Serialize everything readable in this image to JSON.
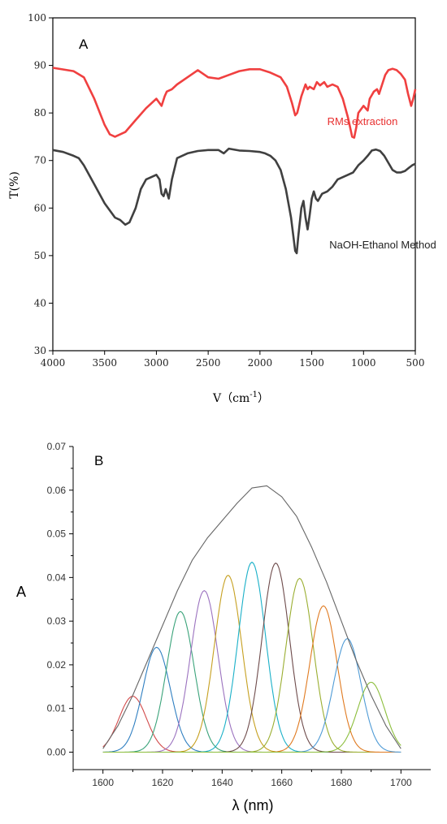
{
  "chart_data": [
    {
      "type": "line",
      "panel_label": "A",
      "xlabel": "V（cm",
      "xlabel_sup": "-1",
      "xlabel_close": "）",
      "ylabel": "T(%)",
      "xlim": [
        4000,
        500
      ],
      "ylim": [
        30,
        100
      ],
      "x_ticks": [
        4000,
        3500,
        3000,
        2500,
        2000,
        1500,
        1000,
        500
      ],
      "y_ticks": [
        30,
        40,
        50,
        60,
        70,
        80,
        90,
        100
      ],
      "colors": {
        "rms": "#f04040",
        "naoh": "#404040"
      },
      "annotations": [
        {
          "text": "RMs extraction",
          "color": "#e83030",
          "x": 1350,
          "y": 77.5
        },
        {
          "text": "NaOH-Ethanol Method",
          "color": "#222222",
          "x": 1330,
          "y": 51.5
        }
      ],
      "series": [
        {
          "name": "RMs extraction",
          "color": "#f04040",
          "points": [
            [
              4000,
              89.5
            ],
            [
              3800,
              88.8
            ],
            [
              3700,
              87.5
            ],
            [
              3600,
              83
            ],
            [
              3500,
              77.5
            ],
            [
              3450,
              75.5
            ],
            [
              3400,
              75
            ],
            [
              3300,
              76
            ],
            [
              3200,
              78.5
            ],
            [
              3100,
              81
            ],
            [
              3000,
              83
            ],
            [
              2950,
              81.5
            ],
            [
              2920,
              83.5
            ],
            [
              2900,
              84.5
            ],
            [
              2850,
              85
            ],
            [
              2800,
              86
            ],
            [
              2700,
              87.5
            ],
            [
              2600,
              89
            ],
            [
              2500,
              87.5
            ],
            [
              2400,
              87.2
            ],
            [
              2300,
              88
            ],
            [
              2200,
              88.8
            ],
            [
              2100,
              89.2
            ],
            [
              2000,
              89.2
            ],
            [
              1900,
              88.5
            ],
            [
              1800,
              87.5
            ],
            [
              1740,
              85.5
            ],
            [
              1690,
              82
            ],
            [
              1660,
              79.5
            ],
            [
              1640,
              80
            ],
            [
              1600,
              83.5
            ],
            [
              1560,
              86
            ],
            [
              1540,
              85
            ],
            [
              1520,
              85.5
            ],
            [
              1480,
              85
            ],
            [
              1450,
              86.5
            ],
            [
              1420,
              85.8
            ],
            [
              1380,
              86.5
            ],
            [
              1350,
              85.5
            ],
            [
              1300,
              86
            ],
            [
              1250,
              85.5
            ],
            [
              1200,
              83
            ],
            [
              1150,
              79
            ],
            [
              1110,
              75
            ],
            [
              1090,
              74.8
            ],
            [
              1070,
              77
            ],
            [
              1050,
              80
            ],
            [
              1000,
              81.5
            ],
            [
              960,
              80.5
            ],
            [
              940,
              83
            ],
            [
              900,
              84.5
            ],
            [
              870,
              85
            ],
            [
              850,
              84
            ],
            [
              820,
              86
            ],
            [
              790,
              88
            ],
            [
              760,
              89
            ],
            [
              720,
              89.3
            ],
            [
              680,
              89
            ],
            [
              640,
              88.2
            ],
            [
              600,
              87
            ],
            [
              570,
              84
            ],
            [
              540,
              81.5
            ],
            [
              520,
              83
            ],
            [
              500,
              85
            ]
          ]
        },
        {
          "name": "NaOH-Ethanol Method",
          "color": "#404040",
          "points": [
            [
              4000,
              72.2
            ],
            [
              3900,
              71.8
            ],
            [
              3800,
              71
            ],
            [
              3750,
              70.5
            ],
            [
              3700,
              69
            ],
            [
              3600,
              65
            ],
            [
              3500,
              61
            ],
            [
              3400,
              58
            ],
            [
              3350,
              57.5
            ],
            [
              3300,
              56.5
            ],
            [
              3260,
              57
            ],
            [
              3200,
              60
            ],
            [
              3150,
              64
            ],
            [
              3100,
              66
            ],
            [
              3050,
              66.5
            ],
            [
              3000,
              67
            ],
            [
              2970,
              66
            ],
            [
              2950,
              63
            ],
            [
              2930,
              62.5
            ],
            [
              2910,
              64
            ],
            [
              2880,
              62
            ],
            [
              2850,
              66
            ],
            [
              2800,
              70.5
            ],
            [
              2700,
              71.5
            ],
            [
              2600,
              72
            ],
            [
              2500,
              72.2
            ],
            [
              2400,
              72.2
            ],
            [
              2350,
              71.5
            ],
            [
              2300,
              72.5
            ],
            [
              2200,
              72.1
            ],
            [
              2100,
              72
            ],
            [
              2000,
              71.8
            ],
            [
              1950,
              71.5
            ],
            [
              1900,
              71
            ],
            [
              1850,
              70
            ],
            [
              1800,
              68
            ],
            [
              1750,
              64
            ],
            [
              1700,
              58
            ],
            [
              1660,
              51
            ],
            [
              1645,
              50.5
            ],
            [
              1630,
              54
            ],
            [
              1600,
              60
            ],
            [
              1580,
              61.5
            ],
            [
              1560,
              58
            ],
            [
              1540,
              55.5
            ],
            [
              1520,
              58.5
            ],
            [
              1500,
              62
            ],
            [
              1480,
              63.5
            ],
            [
              1460,
              62
            ],
            [
              1440,
              61.5
            ],
            [
              1400,
              63
            ],
            [
              1350,
              63.5
            ],
            [
              1300,
              64.5
            ],
            [
              1250,
              66
            ],
            [
              1200,
              66.5
            ],
            [
              1150,
              67
            ],
            [
              1100,
              67.5
            ],
            [
              1050,
              69
            ],
            [
              1000,
              70
            ],
            [
              960,
              71
            ],
            [
              920,
              72.1
            ],
            [
              880,
              72.3
            ],
            [
              840,
              72
            ],
            [
              800,
              71
            ],
            [
              760,
              69.5
            ],
            [
              720,
              68
            ],
            [
              680,
              67.5
            ],
            [
              640,
              67.5
            ],
            [
              600,
              67.8
            ],
            [
              560,
              68.5
            ],
            [
              530,
              69
            ],
            [
              500,
              69.3
            ]
          ]
        }
      ]
    },
    {
      "type": "line",
      "panel_label": "B",
      "xlabel": "λ (nm)",
      "ylabel": "A",
      "xlim": [
        1590,
        1710
      ],
      "ylim": [
        -0.004,
        0.07
      ],
      "x_ticks": [
        1600,
        1620,
        1640,
        1660,
        1680,
        1700
      ],
      "y_ticks": [
        "0.00",
        "0.01",
        "0.02",
        "0.03",
        "0.04",
        "0.05",
        "0.06",
        "0.07"
      ],
      "envelope": {
        "color": "#666666",
        "points": [
          [
            1600,
            0.0008
          ],
          [
            1605,
            0.006
          ],
          [
            1610,
            0.013
          ],
          [
            1615,
            0.021
          ],
          [
            1620,
            0.029
          ],
          [
            1625,
            0.037
          ],
          [
            1630,
            0.044
          ],
          [
            1635,
            0.049
          ],
          [
            1640,
            0.053
          ],
          [
            1645,
            0.057
          ],
          [
            1650,
            0.0605
          ],
          [
            1655,
            0.061
          ],
          [
            1660,
            0.0585
          ],
          [
            1665,
            0.054
          ],
          [
            1670,
            0.047
          ],
          [
            1675,
            0.039
          ],
          [
            1680,
            0.03
          ],
          [
            1685,
            0.021
          ],
          [
            1690,
            0.013
          ],
          [
            1695,
            0.006
          ],
          [
            1700,
            0.0008
          ]
        ]
      },
      "peaks": [
        {
          "center": 1610,
          "height": 0.0128,
          "sigma": 4.6,
          "color": "#d24a4a"
        },
        {
          "center": 1618,
          "height": 0.024,
          "sigma": 4.6,
          "color": "#2f7fc1"
        },
        {
          "center": 1626,
          "height": 0.0322,
          "sigma": 4.6,
          "color": "#3aa37a"
        },
        {
          "center": 1634,
          "height": 0.037,
          "sigma": 4.6,
          "color": "#9b72bf"
        },
        {
          "center": 1642,
          "height": 0.0405,
          "sigma": 4.6,
          "color": "#c6a020"
        },
        {
          "center": 1650,
          "height": 0.0435,
          "sigma": 4.6,
          "color": "#1ab0c8"
        },
        {
          "center": 1658,
          "height": 0.0433,
          "sigma": 4.6,
          "color": "#6e4b4b"
        },
        {
          "center": 1666,
          "height": 0.0398,
          "sigma": 4.6,
          "color": "#9aae30"
        },
        {
          "center": 1674,
          "height": 0.0335,
          "sigma": 4.6,
          "color": "#e07a20"
        },
        {
          "center": 1682,
          "height": 0.026,
          "sigma": 4.6,
          "color": "#4f9bd6"
        },
        {
          "center": 1690,
          "height": 0.016,
          "sigma": 4.6,
          "color": "#8cbe3c"
        }
      ]
    }
  ]
}
